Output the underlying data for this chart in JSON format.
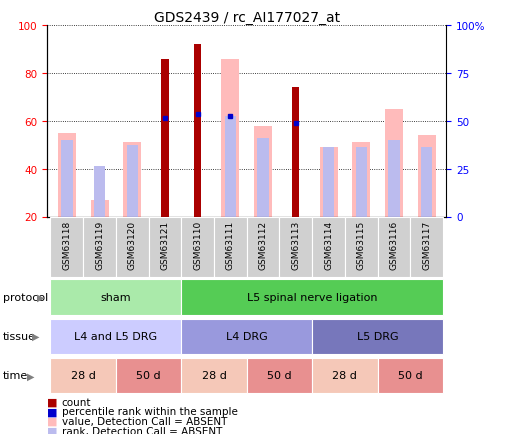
{
  "title": "GDS2439 / rc_AI177027_at",
  "samples": [
    "GSM63118",
    "GSM63119",
    "GSM63120",
    "GSM63121",
    "GSM63110",
    "GSM63111",
    "GSM63112",
    "GSM63113",
    "GSM63114",
    "GSM63115",
    "GSM63116",
    "GSM63117"
  ],
  "count_values": [
    0,
    0,
    0,
    86,
    92,
    0,
    0,
    74,
    0,
    0,
    0,
    0
  ],
  "percentile_values": [
    0,
    0,
    0,
    61,
    63,
    62,
    0,
    59,
    0,
    0,
    0,
    0
  ],
  "pink_bar_values": [
    55,
    27,
    51,
    0,
    0,
    86,
    58,
    0,
    49,
    51,
    65,
    54
  ],
  "light_blue_bar_values": [
    52,
    41,
    50,
    0,
    0,
    62,
    53,
    0,
    49,
    49,
    52,
    49
  ],
  "ylim": [
    20,
    100
  ],
  "yticks_left": [
    20,
    40,
    60,
    80,
    100
  ],
  "yticks_right_pos": [
    20,
    40,
    60,
    80,
    100
  ],
  "yticks_right_labels": [
    "0",
    "25",
    "50",
    "75",
    "100%"
  ],
  "protocol_groups": [
    {
      "label": "sham",
      "start": 0,
      "end": 3,
      "color": "#aaeaaa"
    },
    {
      "label": "L5 spinal nerve ligation",
      "start": 4,
      "end": 11,
      "color": "#55cc55"
    }
  ],
  "tissue_groups": [
    {
      "label": "L4 and L5 DRG",
      "start": 0,
      "end": 3,
      "color": "#ccccff"
    },
    {
      "label": "L4 DRG",
      "start": 4,
      "end": 7,
      "color": "#9999dd"
    },
    {
      "label": "L5 DRG",
      "start": 8,
      "end": 11,
      "color": "#7777bb"
    }
  ],
  "time_groups": [
    {
      "label": "28 d",
      "start": 0,
      "end": 1,
      "color": "#f5c8b8"
    },
    {
      "label": "50 d",
      "start": 2,
      "end": 3,
      "color": "#e89090"
    },
    {
      "label": "28 d",
      "start": 4,
      "end": 5,
      "color": "#f5c8b8"
    },
    {
      "label": "50 d",
      "start": 6,
      "end": 7,
      "color": "#e89090"
    },
    {
      "label": "28 d",
      "start": 8,
      "end": 9,
      "color": "#f5c8b8"
    },
    {
      "label": "50 d",
      "start": 10,
      "end": 11,
      "color": "#e89090"
    }
  ],
  "count_color": "#aa0000",
  "percentile_color": "#0000cc",
  "pink_color": "#ffbbbb",
  "light_blue_color": "#bbbbee",
  "title_fontsize": 10,
  "tick_fontsize": 7.5,
  "label_fontsize": 8,
  "row_label_fontsize": 8,
  "legend_fontsize": 7.5
}
